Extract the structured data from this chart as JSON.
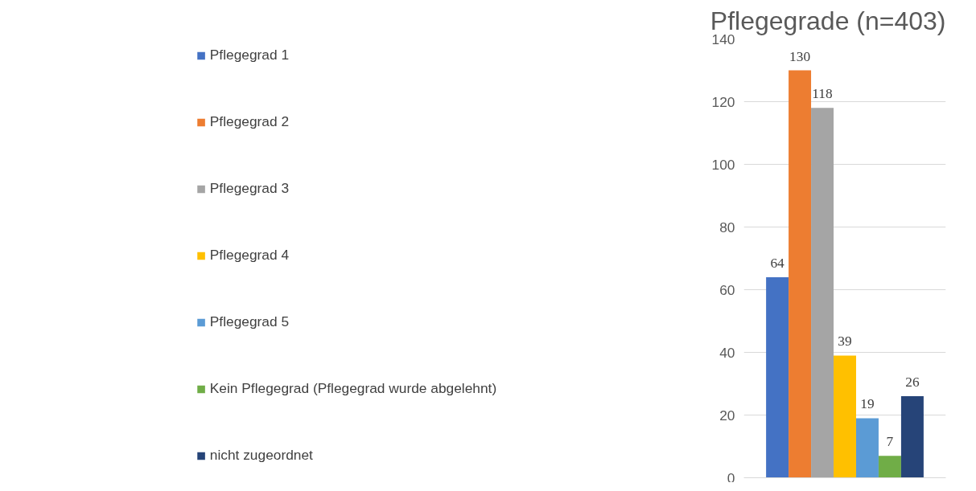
{
  "chart_data": {
    "type": "bar",
    "title": "Pflegegrade (n=403)",
    "categories": [
      null
    ],
    "series": [
      {
        "name": "Pflegegrad 1",
        "color": "#4472c4",
        "values": [
          64
        ]
      },
      {
        "name": "Pflegegrad 2",
        "color": "#ed7d31",
        "values": [
          130
        ]
      },
      {
        "name": "Pflegegrad 3",
        "color": "#a5a5a5",
        "values": [
          118
        ]
      },
      {
        "name": "Pflegegrad 4",
        "color": "#ffc000",
        "values": [
          39
        ]
      },
      {
        "name": "Pflegegrad 5",
        "color": "#5b9bd5",
        "values": [
          19
        ]
      },
      {
        "name": "Kein Pflegegrad (Pflegegrad wurde abgelehnt)",
        "color": "#70ad47",
        "values": [
          7
        ]
      },
      {
        "name": "nicht zugeordnet",
        "color": "#264478",
        "values": [
          26
        ]
      }
    ],
    "ylim": [
      0,
      140
    ],
    "yticks": [
      0,
      20,
      40,
      60,
      80,
      100,
      120,
      140
    ],
    "grid": "y",
    "legend": "left",
    "data_labels": true,
    "tick_labels": "y"
  }
}
